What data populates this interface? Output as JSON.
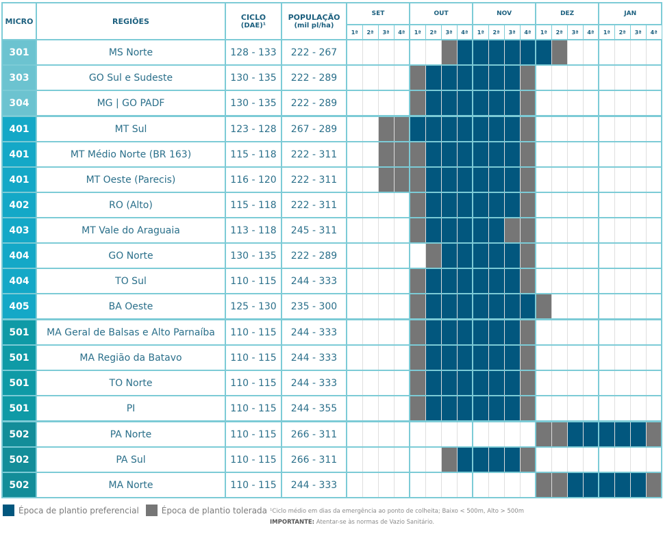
{
  "header": {
    "micro": "MICRO",
    "regioes": "REGIÕES",
    "ciclo": "CICLO",
    "ciclo_sub": "(DAE)¹",
    "populacao": "POPULAÇÃO",
    "populacao_sub": "(mil pl/ha)",
    "months": [
      "SET",
      "OUT",
      "NOV",
      "DEZ",
      "JAN"
    ],
    "weeks": [
      "1ª",
      "2ª",
      "3ª",
      "4ª"
    ]
  },
  "colors": {
    "preferencial": "#02577e",
    "tolerada": "#767676",
    "micro_300": "#6cc3d0",
    "micro_400": "#14a8c7",
    "micro_501": "#0f9aa6",
    "micro_502": "#138d99"
  },
  "schedule_legend": "Each row schedule: 20 weeks SET1..JAN4; b = preferencial, g = tolerada, . = none",
  "rows": [
    {
      "micro": "301",
      "regiao": "MS Norte",
      "ciclo": "128 - 133",
      "populacao": "222 - 267",
      "schedule": "......gbbbbbbg......"
    },
    {
      "micro": "303",
      "regiao": "GO Sul e Sudeste",
      "ciclo": "130 - 135",
      "populacao": "222 - 289",
      "schedule": "....gbbbbbbg........"
    },
    {
      "micro": "304",
      "regiao": "MG | GO PADF",
      "ciclo": "130 - 135",
      "populacao": "222 - 289",
      "schedule": "....gbbbbbbg........"
    },
    {
      "micro": "401",
      "regiao": "MT Sul",
      "ciclo": "123 - 128",
      "populacao": "267 - 289",
      "schedule": "..ggbbbbbbbg........"
    },
    {
      "micro": "401",
      "regiao": "MT Médio Norte (BR 163)",
      "ciclo": "115 - 118",
      "populacao": "222 - 311",
      "schedule": "..gggbbbbbbg........"
    },
    {
      "micro": "401",
      "regiao": "MT Oeste (Parecis)",
      "ciclo": "116 - 120",
      "populacao": "222 - 311",
      "schedule": "..gggbbbbbbg........"
    },
    {
      "micro": "402",
      "regiao": "RO (Alto)",
      "ciclo": "115 - 118",
      "populacao": "222 - 311",
      "schedule": "....gbbbbbbg........"
    },
    {
      "micro": "403",
      "regiao": "MT Vale do Araguaia",
      "ciclo": "113 - 118",
      "populacao": "245 - 311",
      "schedule": "....gbbbbbgg........"
    },
    {
      "micro": "404",
      "regiao": "GO Norte",
      "ciclo": "130 - 135",
      "populacao": "222 - 289",
      "schedule": ".....gbbbbbg........"
    },
    {
      "micro": "404",
      "regiao": "TO Sul",
      "ciclo": "110 - 115",
      "populacao": "244 - 333",
      "schedule": "....gbbbbbbg........"
    },
    {
      "micro": "405",
      "regiao": "BA Oeste",
      "ciclo": "125 - 130",
      "populacao": "235 - 300",
      "schedule": "....gbbbbbbbg......."
    },
    {
      "micro": "501",
      "regiao": "MA Geral de Balsas e Alto Parnaíba",
      "ciclo": "110 - 115",
      "populacao": "244 - 333",
      "schedule": "....gbbbbbbg........"
    },
    {
      "micro": "501",
      "regiao": "MA Região da Batavo",
      "ciclo": "110 - 115",
      "populacao": "244 - 333",
      "schedule": "....gbbbbbbg........"
    },
    {
      "micro": "501",
      "regiao": "TO Norte",
      "ciclo": "110 - 115",
      "populacao": "244 - 333",
      "schedule": "....gbbbbbbg........"
    },
    {
      "micro": "501",
      "regiao": "PI",
      "ciclo": "110 - 115",
      "populacao": "244 - 355",
      "schedule": "....gbbbbbbg........"
    },
    {
      "micro": "502",
      "regiao": "PA Norte",
      "ciclo": "110 - 115",
      "populacao": "266 - 311",
      "schedule": "............ggbbbbbg"
    },
    {
      "micro": "502",
      "regiao": "PA Sul",
      "ciclo": "110 - 115",
      "populacao": "266 - 311",
      "schedule": "......gbbbbg........"
    },
    {
      "micro": "502",
      "regiao": "MA Norte",
      "ciclo": "110 - 115",
      "populacao": "244 - 333",
      "schedule": "............ggbbbbbg"
    }
  ],
  "legend": {
    "preferencial": "Época de plantio preferencial",
    "tolerada": "Época de plantio tolerada"
  },
  "notes": {
    "footnote": "¹Ciclo médio em dias da emergência ao ponto de colheita; Baixo < 500m, Alto > 500m",
    "important_label": "IMPORTANTE:",
    "important_text": " Atentar-se às normas de Vazio Sanitário."
  }
}
